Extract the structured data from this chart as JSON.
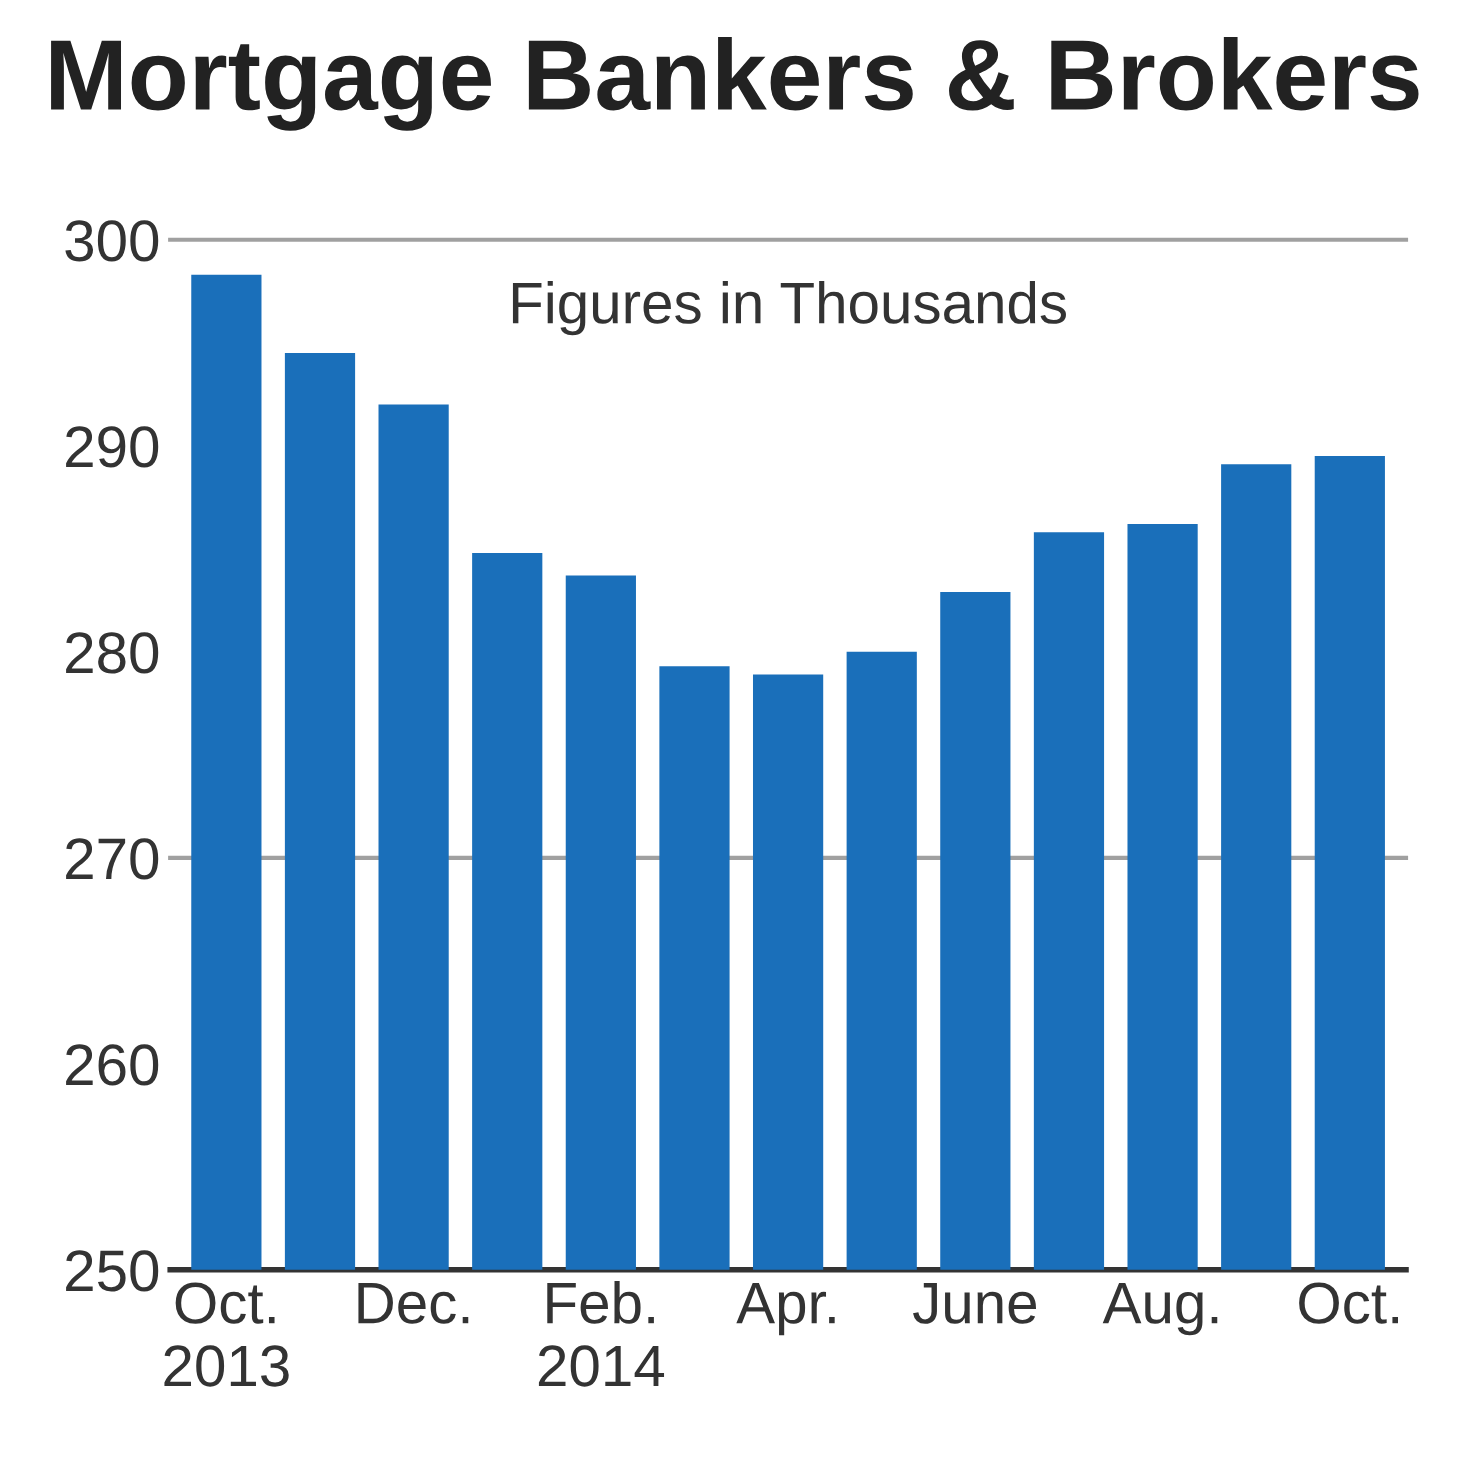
{
  "chart_data": {
    "type": "bar",
    "title": "Mortgage Bankers & Brokers",
    "annotations": [
      "Figures in Thousands"
    ],
    "categories": [
      "Oct.\n2013",
      null,
      "Dec.",
      null,
      "Feb.\n2014",
      null,
      "Apr.",
      null,
      "June",
      null,
      "Aug.",
      null,
      "Oct."
    ],
    "values": [
      298.3,
      294.5,
      292.0,
      284.8,
      283.7,
      279.3,
      278.9,
      280.0,
      282.9,
      285.8,
      286.2,
      289.1,
      289.5
    ],
    "color": "#1a6fba",
    "ylim": [
      250,
      300
    ],
    "yticks": [
      250,
      260,
      270,
      280,
      290,
      300
    ],
    "ref_lines": [
      {
        "axis": "y",
        "value": 270,
        "color": "#a0a0a0"
      }
    ],
    "grid": false
  }
}
